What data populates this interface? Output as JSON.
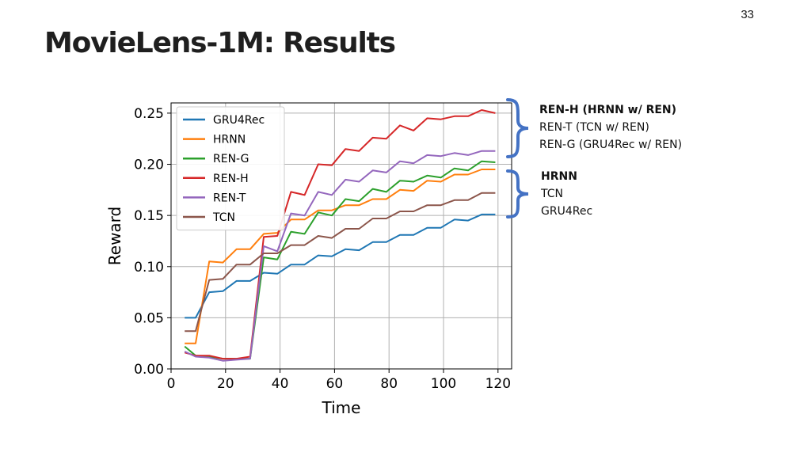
{
  "slide": {
    "number": "33",
    "title": "MovieLens-1M: Results"
  },
  "notes": {
    "upper": [
      "REN-H (HRNN w/ REN)",
      "REN-T (TCN w/ REN)",
      "REN-G (GRU4Rec w/ REN)"
    ],
    "lower": [
      "HRNN",
      "TCN",
      "GRU4Rec"
    ],
    "brace_color": "#4472c4"
  },
  "chart_data": {
    "type": "line",
    "xlabel": "Time",
    "ylabel": "Reward",
    "xlim": [
      0,
      125
    ],
    "ylim": [
      0,
      0.26
    ],
    "xticks": [
      0,
      20,
      40,
      60,
      80,
      100,
      120
    ],
    "yticks": [
      0.0,
      0.05,
      0.1,
      0.15,
      0.2,
      0.25
    ],
    "xtick_labels": [
      "0",
      "20",
      "40",
      "60",
      "80",
      "100",
      "120"
    ],
    "ytick_labels": [
      "0.00",
      "0.05",
      "0.10",
      "0.15",
      "0.20",
      "0.25"
    ],
    "grid": true,
    "legend": "top-left",
    "x": [
      5,
      9,
      14,
      19,
      24,
      29,
      34,
      39,
      44,
      49,
      54,
      59,
      64,
      69,
      74,
      79,
      84,
      89,
      94,
      99,
      104,
      109,
      114,
      119
    ],
    "series": [
      {
        "name": "GRU4Rec",
        "color": "#1f77b4",
        "values": [
          0.05,
          0.05,
          0.075,
          0.076,
          0.086,
          0.086,
          0.094,
          0.093,
          0.102,
          0.102,
          0.111,
          0.11,
          0.117,
          0.116,
          0.124,
          0.124,
          0.131,
          0.131,
          0.138,
          0.138,
          0.146,
          0.145,
          0.151,
          0.151
        ]
      },
      {
        "name": "HRNN",
        "color": "#ff7f0e",
        "values": [
          0.025,
          0.025,
          0.105,
          0.104,
          0.117,
          0.117,
          0.132,
          0.133,
          0.146,
          0.146,
          0.155,
          0.155,
          0.16,
          0.16,
          0.166,
          0.166,
          0.175,
          0.174,
          0.184,
          0.183,
          0.19,
          0.19,
          0.195,
          0.195
        ]
      },
      {
        "name": "REN-G",
        "color": "#2ca02c",
        "values": [
          0.022,
          0.013,
          0.012,
          0.01,
          0.01,
          0.01,
          0.109,
          0.107,
          0.134,
          0.132,
          0.153,
          0.15,
          0.166,
          0.164,
          0.176,
          0.173,
          0.184,
          0.183,
          0.189,
          0.187,
          0.196,
          0.194,
          0.203,
          0.202
        ]
      },
      {
        "name": "REN-H",
        "color": "#d62728",
        "values": [
          0.016,
          0.013,
          0.013,
          0.01,
          0.01,
          0.012,
          0.129,
          0.13,
          0.173,
          0.17,
          0.2,
          0.199,
          0.215,
          0.213,
          0.226,
          0.225,
          0.238,
          0.233,
          0.245,
          0.244,
          0.247,
          0.247,
          0.253,
          0.25
        ]
      },
      {
        "name": "REN-T",
        "color": "#9467bd",
        "values": [
          0.017,
          0.012,
          0.011,
          0.008,
          0.009,
          0.01,
          0.12,
          0.115,
          0.152,
          0.15,
          0.173,
          0.17,
          0.185,
          0.183,
          0.194,
          0.192,
          0.203,
          0.201,
          0.209,
          0.208,
          0.211,
          0.209,
          0.213,
          0.213
        ]
      },
      {
        "name": "TCN",
        "color": "#8c564b",
        "values": [
          0.037,
          0.037,
          0.087,
          0.088,
          0.102,
          0.102,
          0.113,
          0.113,
          0.121,
          0.121,
          0.13,
          0.128,
          0.137,
          0.137,
          0.147,
          0.147,
          0.154,
          0.154,
          0.16,
          0.16,
          0.165,
          0.165,
          0.172,
          0.172
        ]
      }
    ]
  }
}
